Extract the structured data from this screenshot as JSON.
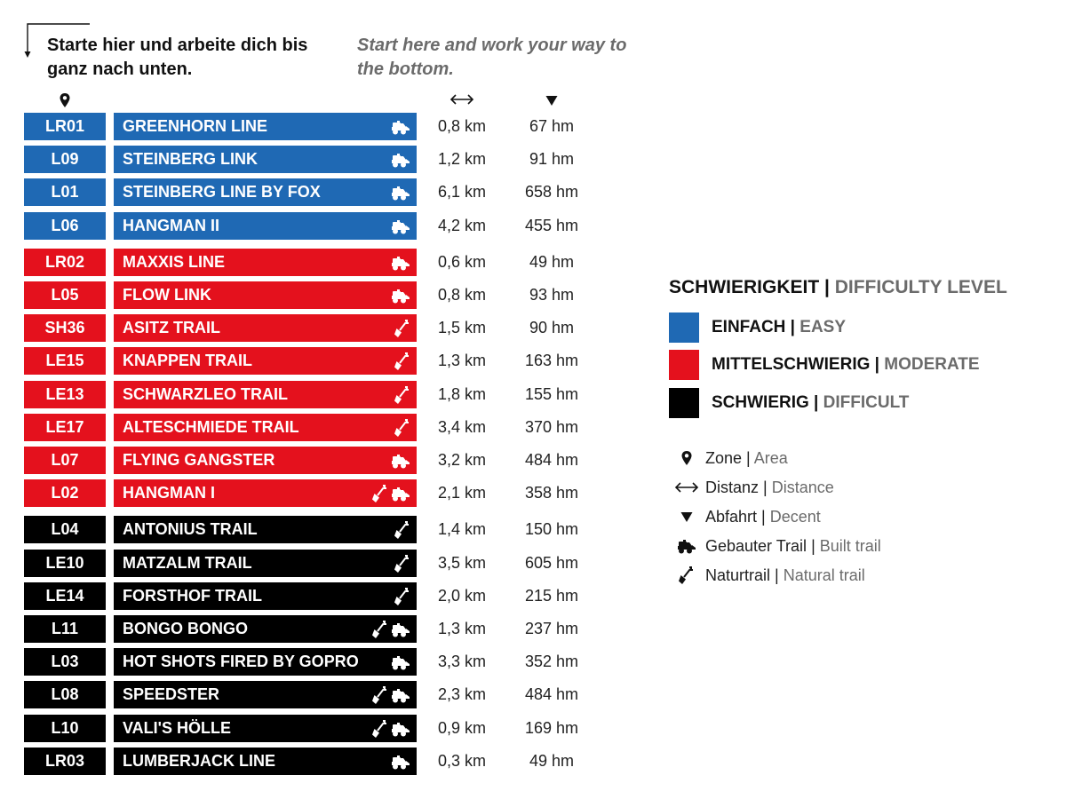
{
  "intro": {
    "de": "Starte hier und arbeite dich bis ganz nach unten.",
    "en": "Start here and work your way to the bottom."
  },
  "header_icons": {
    "zone": "map-pin-icon",
    "distance": "double-arrow-icon",
    "descent": "down-triangle-icon"
  },
  "colors": {
    "easy": "#1f69b4",
    "moderate": "#e4111d",
    "difficult": "#000000",
    "text_grey": "#6b6b6b"
  },
  "trails": [
    {
      "code": "LR01",
      "name": "GREENHORN LINE",
      "level": "easy",
      "icons": [
        "built-trail-icon"
      ],
      "distance": "0,8 km",
      "descent": "67 hm"
    },
    {
      "code": "L09",
      "name": "STEINBERG LINK",
      "level": "easy",
      "icons": [
        "built-trail-icon"
      ],
      "distance": "1,2 km",
      "descent": "91 hm"
    },
    {
      "code": "L01",
      "name": "STEINBERG LINE BY FOX",
      "level": "easy",
      "icons": [
        "built-trail-icon"
      ],
      "distance": "6,1 km",
      "descent": "658 hm"
    },
    {
      "code": "L06",
      "name": "HANGMAN II",
      "level": "easy",
      "icons": [
        "built-trail-icon"
      ],
      "distance": "4,2 km",
      "descent": "455 hm"
    },
    {
      "code": "LR02",
      "name": "MAXXIS LINE",
      "level": "moderate",
      "icons": [
        "built-trail-icon"
      ],
      "distance": "0,6 km",
      "descent": "49 hm"
    },
    {
      "code": "L05",
      "name": "FLOW LINK",
      "level": "moderate",
      "icons": [
        "built-trail-icon"
      ],
      "distance": "0,8 km",
      "descent": "93 hm"
    },
    {
      "code": "SH36",
      "name": "ASITZ TRAIL",
      "level": "moderate",
      "icons": [
        "natural-trail-icon"
      ],
      "distance": "1,5 km",
      "descent": "90 hm"
    },
    {
      "code": "LE15",
      "name": "KNAPPEN TRAIL",
      "level": "moderate",
      "icons": [
        "natural-trail-icon"
      ],
      "distance": "1,3 km",
      "descent": "163 hm"
    },
    {
      "code": "LE13",
      "name": "SCHWARZLEO TRAIL",
      "level": "moderate",
      "icons": [
        "natural-trail-icon"
      ],
      "distance": "1,8 km",
      "descent": "155 hm"
    },
    {
      "code": "LE17",
      "name": "ALTESCHMIEDE TRAIL",
      "level": "moderate",
      "icons": [
        "natural-trail-icon"
      ],
      "distance": "3,4 km",
      "descent": "370 hm"
    },
    {
      "code": "L07",
      "name": "FLYING GANGSTER",
      "level": "moderate",
      "icons": [
        "built-trail-icon"
      ],
      "distance": "3,2 km",
      "descent": "484 hm"
    },
    {
      "code": "L02",
      "name": "HANGMAN I",
      "level": "moderate",
      "icons": [
        "natural-trail-icon",
        "built-trail-icon"
      ],
      "distance": "2,1 km",
      "descent": "358 hm"
    },
    {
      "code": "L04",
      "name": "ANTONIUS TRAIL",
      "level": "difficult",
      "icons": [
        "natural-trail-icon"
      ],
      "distance": "1,4 km",
      "descent": "150 hm"
    },
    {
      "code": "LE10",
      "name": "MATZALM TRAIL",
      "level": "difficult",
      "icons": [
        "natural-trail-icon"
      ],
      "distance": "3,5 km",
      "descent": "605 hm"
    },
    {
      "code": "LE14",
      "name": "FORSTHOF TRAIL",
      "level": "difficult",
      "icons": [
        "natural-trail-icon"
      ],
      "distance": "2,0 km",
      "descent": "215 hm"
    },
    {
      "code": "L11",
      "name": "BONGO BONGO",
      "level": "difficult",
      "icons": [
        "natural-trail-icon",
        "built-trail-icon"
      ],
      "distance": "1,3 km",
      "descent": "237 hm"
    },
    {
      "code": "L03",
      "name": "HOT SHOTS FIRED BY GOPRO",
      "level": "difficult",
      "icons": [
        "built-trail-icon"
      ],
      "distance": "3,3 km",
      "descent": "352 hm"
    },
    {
      "code": "L08",
      "name": "SPEEDSTER",
      "level": "difficult",
      "icons": [
        "natural-trail-icon",
        "built-trail-icon"
      ],
      "distance": "2,3 km",
      "descent": "484 hm"
    },
    {
      "code": "L10",
      "name": "VALI'S HÖLLE",
      "level": "difficult",
      "icons": [
        "natural-trail-icon",
        "built-trail-icon"
      ],
      "distance": "0,9 km",
      "descent": "169 hm"
    },
    {
      "code": "LR03",
      "name": "LUMBERJACK LINE",
      "level": "difficult",
      "icons": [
        "built-trail-icon"
      ],
      "distance": "0,3 km",
      "descent": "49 hm"
    }
  ],
  "legend": {
    "title_de": "SCHWIERIGKEIT",
    "separator": " | ",
    "title_en": "DIFFICULTY LEVEL",
    "levels": [
      {
        "key": "easy",
        "de": "EINFACH",
        "en": "EASY"
      },
      {
        "key": "moderate",
        "de": "MITTELSCHWIERIG",
        "en": "MODERATE"
      },
      {
        "key": "difficult",
        "de": "SCHWIERIG",
        "en": "DIFFICULT"
      }
    ],
    "symbols": [
      {
        "icon": "map-pin-icon",
        "de": "Zone",
        "en": "Area"
      },
      {
        "icon": "double-arrow-icon",
        "de": "Distanz",
        "en": "Distance"
      },
      {
        "icon": "down-triangle-icon",
        "de": "Abfahrt",
        "en": "Decent"
      },
      {
        "icon": "built-trail-icon",
        "de": "Gebauter Trail",
        "en": "Built trail"
      },
      {
        "icon": "natural-trail-icon",
        "de": "Naturtrail",
        "en": "Natural trail"
      }
    ]
  }
}
